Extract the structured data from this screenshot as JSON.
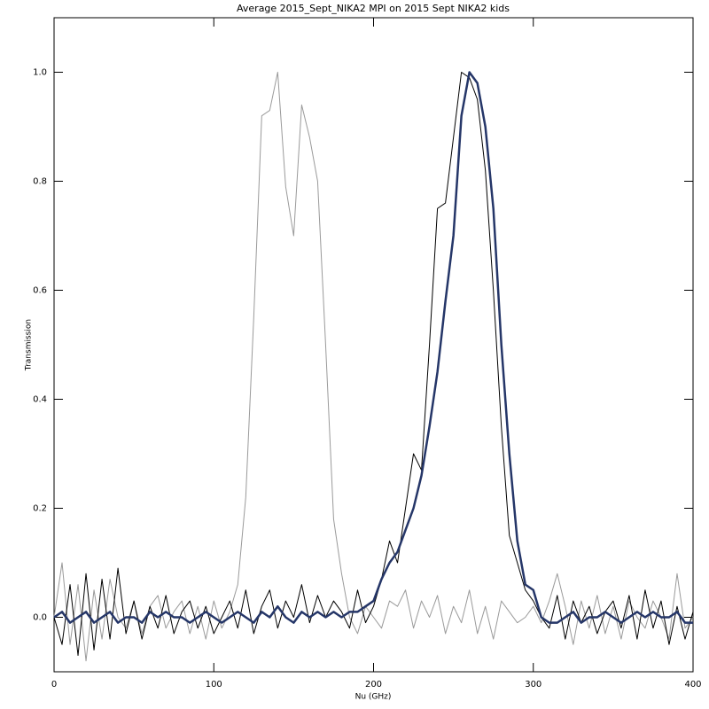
{
  "chart_data": {
    "type": "line",
    "title": "Average 2015_Sept_NIKA2 MPI on 2015 Sept NIKA2 kids",
    "x_label": "Nu (GHz)",
    "y_label": "Transmission",
    "xlim": [
      0,
      400
    ],
    "ylim": [
      -0.1,
      1.1
    ],
    "xticks": [
      0,
      100,
      200,
      300,
      400
    ],
    "yticks": [
      {
        "value": 0,
        "label": "0.0"
      },
      0.2,
      0.4,
      0.6,
      0.8,
      {
        "value": 1,
        "label": "1.0"
      }
    ],
    "x": [
      0,
      5,
      10,
      15,
      20,
      25,
      30,
      35,
      40,
      45,
      50,
      55,
      60,
      65,
      70,
      75,
      80,
      85,
      90,
      95,
      100,
      105,
      110,
      115,
      120,
      125,
      130,
      135,
      140,
      145,
      150,
      155,
      160,
      165,
      170,
      175,
      180,
      185,
      190,
      195,
      200,
      205,
      210,
      215,
      220,
      225,
      230,
      235,
      240,
      245,
      250,
      255,
      260,
      265,
      270,
      275,
      280,
      285,
      290,
      295,
      300,
      305,
      310,
      315,
      320,
      325,
      330,
      335,
      340,
      345,
      350,
      355,
      360,
      365,
      370,
      375,
      380,
      385,
      390,
      395,
      400
    ],
    "series": [
      {
        "color": "#9a9a9a",
        "line_width": 1,
        "values": [
          0.0,
          0.1,
          -0.05,
          0.06,
          -0.08,
          0.05,
          -0.04,
          0.07,
          0.0,
          -0.02,
          0.03,
          -0.03,
          0.02,
          0.04,
          -0.02,
          0.01,
          0.03,
          -0.03,
          0.02,
          -0.04,
          0.03,
          -0.02,
          0.01,
          0.06,
          0.22,
          0.55,
          0.92,
          0.93,
          1.0,
          0.79,
          0.7,
          0.94,
          0.88,
          0.8,
          0.5,
          0.18,
          0.08,
          0.0,
          -0.03,
          0.02,
          0.0,
          -0.02,
          0.03,
          0.02,
          0.05,
          -0.02,
          0.03,
          0.0,
          0.04,
          -0.03,
          0.02,
          -0.01,
          0.05,
          -0.03,
          0.02,
          -0.04,
          0.03,
          0.01,
          -0.01,
          0.0,
          0.02,
          -0.01,
          0.03,
          0.08,
          0.02,
          -0.05,
          0.03,
          -0.02,
          0.04,
          -0.03,
          0.02,
          -0.04,
          0.03,
          0.0,
          -0.02,
          0.03,
          0.0,
          -0.04,
          0.08,
          -0.02,
          0.0
        ]
      },
      {
        "color": "#000000",
        "line_width": 1,
        "values": [
          0.0,
          -0.05,
          0.06,
          -0.07,
          0.08,
          -0.06,
          0.07,
          -0.04,
          0.09,
          -0.03,
          0.03,
          -0.04,
          0.02,
          -0.02,
          0.04,
          -0.03,
          0.01,
          0.03,
          -0.02,
          0.02,
          -0.03,
          0.0,
          0.03,
          -0.02,
          0.05,
          -0.03,
          0.02,
          0.05,
          -0.02,
          0.03,
          0.0,
          0.06,
          -0.01,
          0.04,
          0.0,
          0.03,
          0.01,
          -0.02,
          0.05,
          -0.01,
          0.02,
          0.07,
          0.14,
          0.1,
          0.2,
          0.3,
          0.27,
          0.5,
          0.75,
          0.76,
          0.88,
          1.0,
          0.99,
          0.95,
          0.82,
          0.6,
          0.35,
          0.15,
          0.1,
          0.05,
          0.03,
          0.0,
          -0.02,
          0.04,
          -0.04,
          0.03,
          -0.01,
          0.02,
          -0.03,
          0.01,
          0.03,
          -0.02,
          0.04,
          -0.04,
          0.05,
          -0.02,
          0.03,
          -0.05,
          0.02,
          -0.04,
          0.01
        ]
      },
      {
        "color": "#253668",
        "line_width": 2.5,
        "values": [
          0.0,
          0.01,
          -0.01,
          0.0,
          0.01,
          -0.01,
          0.0,
          0.01,
          -0.01,
          0.0,
          0.0,
          -0.01,
          0.01,
          0.0,
          0.01,
          0.0,
          0.0,
          -0.01,
          0.0,
          0.01,
          0.0,
          -0.01,
          0.0,
          0.01,
          0.0,
          -0.01,
          0.01,
          0.0,
          0.02,
          0.0,
          -0.01,
          0.01,
          0.0,
          0.01,
          0.0,
          0.01,
          0.0,
          0.01,
          0.01,
          0.02,
          0.03,
          0.07,
          0.1,
          0.12,
          0.16,
          0.2,
          0.26,
          0.35,
          0.45,
          0.58,
          0.7,
          0.92,
          1.0,
          0.98,
          0.9,
          0.75,
          0.5,
          0.3,
          0.14,
          0.06,
          0.05,
          0.0,
          -0.01,
          -0.01,
          0.0,
          0.01,
          -0.01,
          0.0,
          0.0,
          0.01,
          0.0,
          -0.01,
          0.0,
          0.01,
          0.0,
          0.01,
          0.0,
          0.0,
          0.01,
          -0.01,
          -0.01
        ]
      }
    ]
  }
}
